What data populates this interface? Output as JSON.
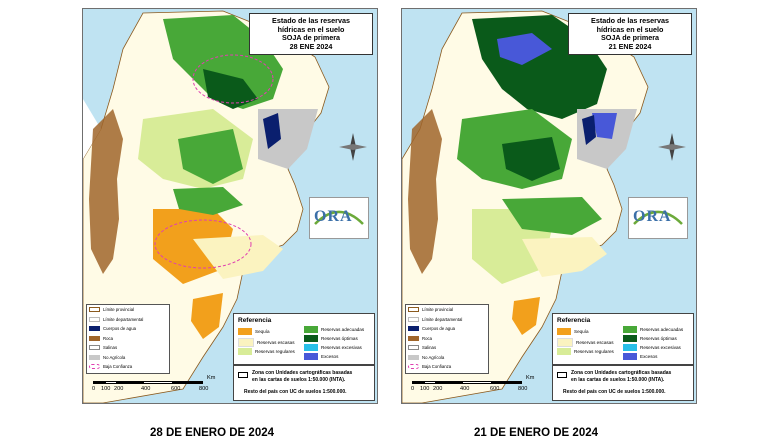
{
  "left_panel": {
    "title_lines": [
      "Estado de las reservas",
      "hídricas en el suelo",
      "SOJA de primera",
      "28 ENE 2024"
    ],
    "caption": "28 DE ENERO DE 2024"
  },
  "right_panel": {
    "title_lines": [
      "Estado de las reservas",
      "hídricas en el suelo",
      "SOJA de primera",
      "21 ENE 2024"
    ],
    "caption": "21 DE ENERO DE 2024"
  },
  "logo_text": "ORA",
  "legend_left": [
    {
      "label": "Límite provincial",
      "color": "#8b5a1e",
      "kind": "outline"
    },
    {
      "label": "Límite departamental",
      "color": "#bbbbbb",
      "kind": "outline"
    },
    {
      "label": "Cuerpos de agua",
      "color": "#0a1f6e",
      "kind": "fill"
    },
    {
      "label": "Roca",
      "color": "#a0652a",
      "kind": "fill"
    },
    {
      "label": "Salinas",
      "color": "#ffffff",
      "kind": "outline"
    },
    {
      "label": "No Agrícola",
      "color": "#c8c8c8",
      "kind": "fill"
    },
    {
      "label": "Baja Confianza",
      "color": "#e040b0",
      "kind": "dashed"
    }
  ],
  "reference": {
    "title": "Referencia",
    "items": [
      {
        "label": "Sequía",
        "color": "#f2a01c"
      },
      {
        "label": "Reservas escasas",
        "color": "#fbf3c0"
      },
      {
        "label": "Reservas regulares",
        "color": "#d8ec98"
      },
      {
        "label": "Reservas adecuadas",
        "color": "#48a838"
      },
      {
        "label": "Reservas óptimas",
        "color": "#0a5a1a"
      },
      {
        "label": "Reservas excesivas",
        "color": "#28c0e8"
      },
      {
        "label": "Excesos",
        "color": "#4858d8"
      }
    ]
  },
  "uc_box": {
    "line1": "Zona con Unidades cartográficas basadas",
    "line2": "en las cartas de suelos 1:50.000 (INTA).",
    "line3": "Resto del país con UC de suelos 1:500.000."
  },
  "scale": {
    "labels": [
      "0",
      "100",
      "200",
      "400",
      "600",
      "800"
    ],
    "unit": "Km"
  }
}
